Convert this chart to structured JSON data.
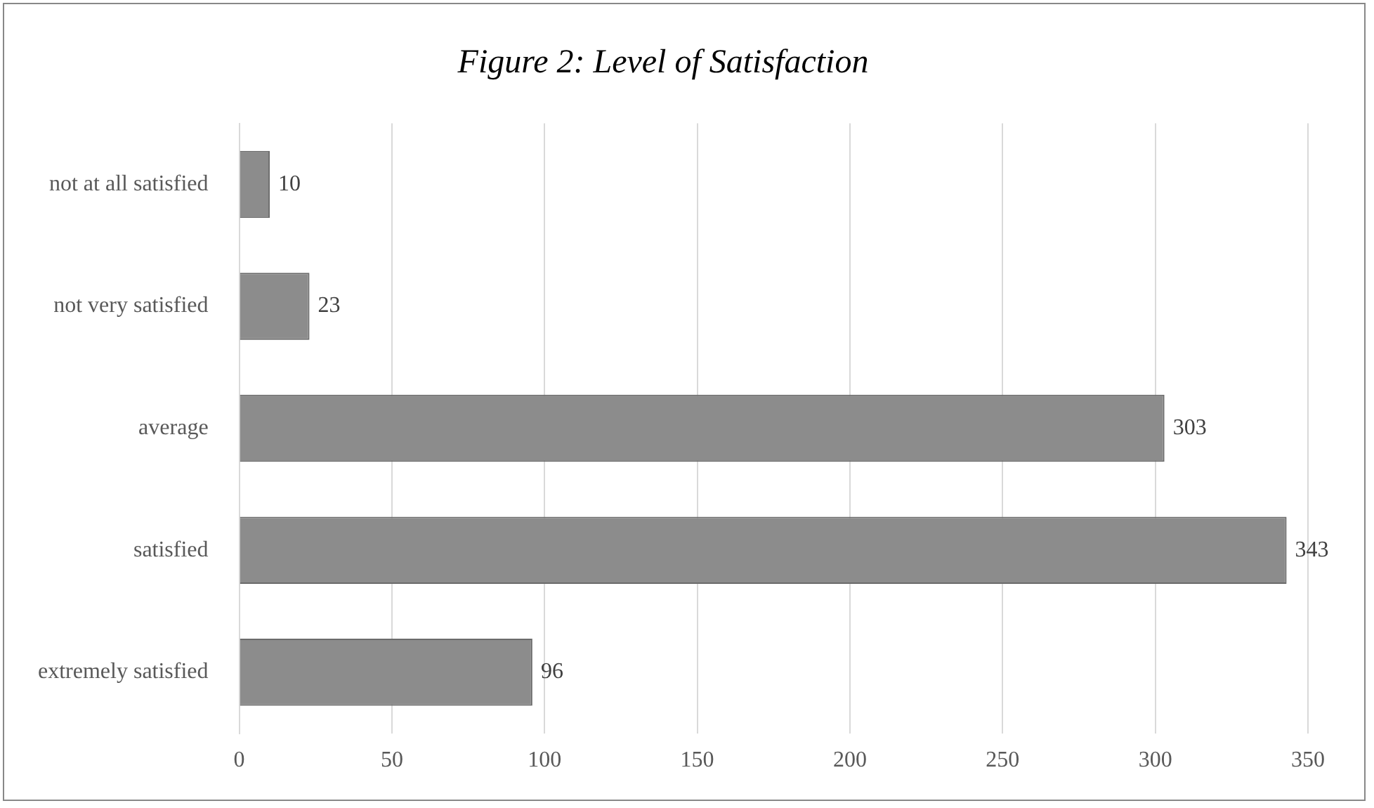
{
  "chart_data": {
    "type": "bar",
    "orientation": "horizontal",
    "title": "Figure 2: Level of Satisfaction",
    "categories": [
      "not at all satisfied",
      "not very satisfied",
      "average",
      "satisfied",
      "extremely satisfied"
    ],
    "values": [
      10,
      23,
      303,
      343,
      96
    ],
    "color": "#8c8c8c",
    "xlim": [
      0,
      350
    ],
    "xticks": [
      0,
      50,
      100,
      150,
      200,
      250,
      300,
      350
    ],
    "grid": "x",
    "data_labels": true,
    "legend": false
  }
}
